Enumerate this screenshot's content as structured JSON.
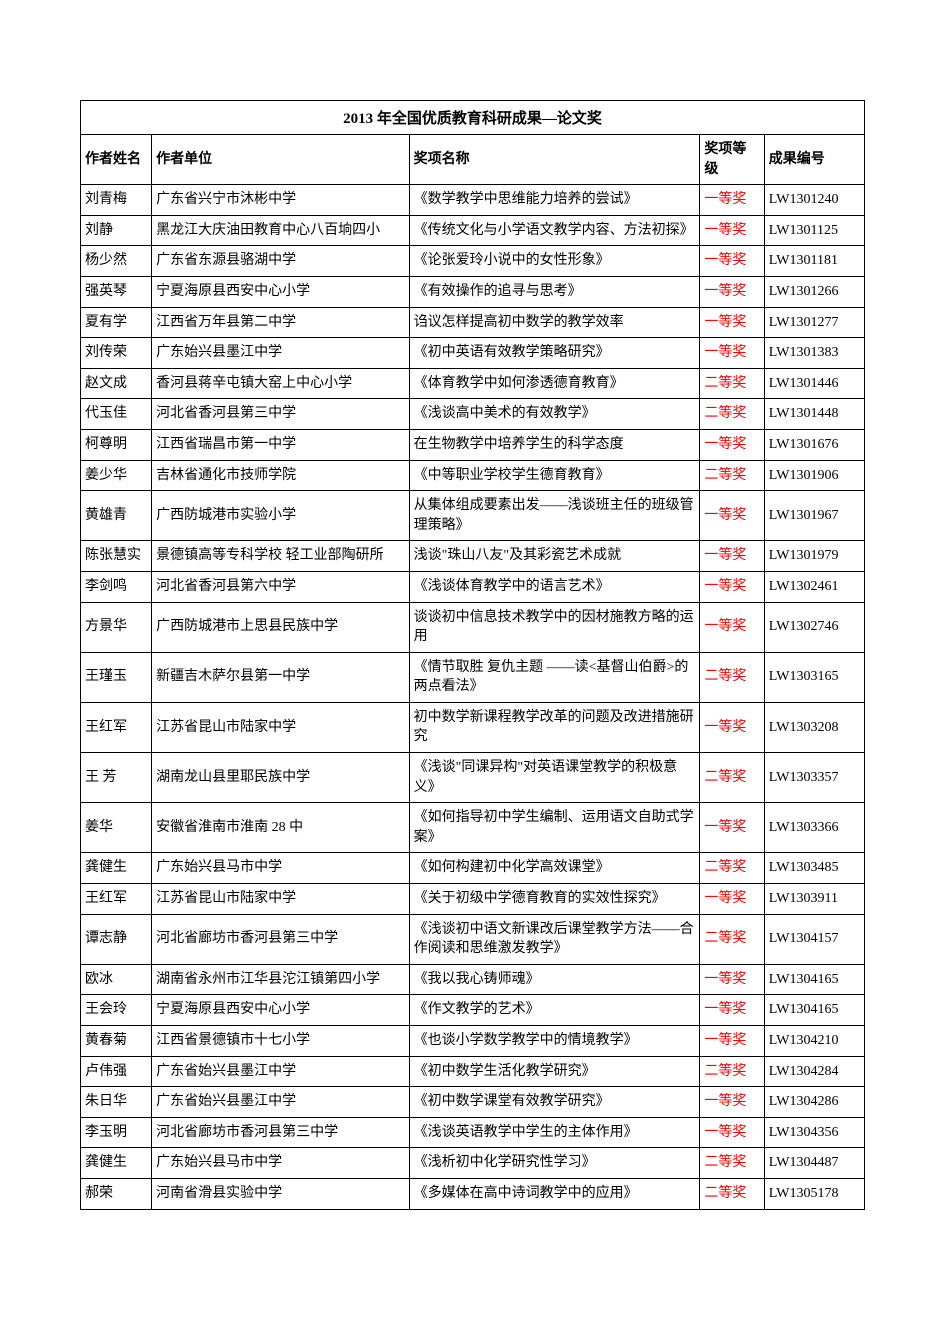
{
  "title": "2013 年全国优质教育科研成果—论文奖",
  "columns": [
    "作者姓名",
    "作者单位",
    "奖项名称",
    "奖项等级",
    "成果编号"
  ],
  "level_color": "#ff0000",
  "text_color": "#000000",
  "border_color": "#000000",
  "background_color": "#ffffff",
  "font_family": "SimSun",
  "title_fontsize": 15,
  "cell_fontsize": 14,
  "rows": [
    {
      "author": "刘青梅",
      "unit": "广东省兴宁市沐彬中学",
      "award": "《数学教学中思维能力培养的尝试》",
      "level": "一等奖",
      "code": "LW1301240"
    },
    {
      "author": "刘静",
      "unit": "黑龙江大庆油田教育中心八百垧四小",
      "award": "《传统文化与小学语文教学内容、方法初探》",
      "level": "一等奖",
      "code": "LW1301125"
    },
    {
      "author": "杨少然",
      "unit": "广东省东源县骆湖中学",
      "award": "《论张爱玲小说中的女性形象》",
      "level": "一等奖",
      "code": "LW1301181"
    },
    {
      "author": "强英琴",
      "unit": "宁夏海原县西安中心小学",
      "award": "《有效操作的追寻与思考》",
      "level": "一等奖",
      "code": "LW1301266"
    },
    {
      "author": "夏有学",
      "unit": "江西省万年县第二中学",
      "award": "诌议怎样提高初中数学的教学效率",
      "level": "一等奖",
      "code": "LW1301277"
    },
    {
      "author": "刘传荣",
      "unit": "广东始兴县墨江中学",
      "award": "《初中英语有效教学策略研究》",
      "level": "一等奖",
      "code": "LW1301383"
    },
    {
      "author": "赵文成",
      "unit": "香河县蒋辛屯镇大窑上中心小学",
      "award": "《体育教学中如何渗透德育教育》",
      "level": "二等奖",
      "code": "LW1301446"
    },
    {
      "author": "代玉佳",
      "unit": "河北省香河县第三中学",
      "award": "《浅谈高中美术的有效教学》",
      "level": "二等奖",
      "code": "LW1301448"
    },
    {
      "author": "柯尊明",
      "unit": "江西省瑞昌市第一中学",
      "award": "在生物教学中培养学生的科学态度",
      "level": "一等奖",
      "code": "LW1301676"
    },
    {
      "author": "姜少华",
      "unit": "吉林省通化市技师学院",
      "award": "《中等职业学校学生德育教育》",
      "level": "二等奖",
      "code": "LW1301906"
    },
    {
      "author": "黄雄青",
      "unit": "广西防城港市实验小学",
      "award": "从集体组成要素出发——浅谈班主任的班级管理策略》",
      "level": "一等奖",
      "code": "LW1301967"
    },
    {
      "author": "陈张慧实",
      "unit": "景德镇高等专科学校 轻工业部陶研所",
      "award": "浅谈\"珠山八友\"及其彩瓷艺术成就",
      "level": "一等奖",
      "code": "LW1301979"
    },
    {
      "author": "李剑鸣",
      "unit": "河北省香河县第六中学",
      "award": "《浅谈体育教学中的语言艺术》",
      "level": "一等奖",
      "code": "LW1302461"
    },
    {
      "author": "方景华",
      "unit": "广西防城港市上思县民族中学",
      "award": "谈谈初中信息技术教学中的因材施教方略的运用",
      "level": "一等奖",
      "code": "LW1302746"
    },
    {
      "author": "王瑾玉",
      "unit": "新疆吉木萨尔县第一中学",
      "award": "《情节取胜  复仇主题  ——读<基督山伯爵>的两点看法》",
      "level": "二等奖",
      "code": "LW1303165"
    },
    {
      "author": "王红军",
      "unit": "江苏省昆山市陆家中学",
      "award": "初中数学新课程教学改革的问题及改进措施研究",
      "level": "一等奖",
      "code": "LW1303208"
    },
    {
      "author": "王 芳",
      "unit": "湖南龙山县里耶民族中学",
      "award": "《浅谈\"同课异构\"对英语课堂教学的积极意义》",
      "level": "二等奖",
      "code": "LW1303357"
    },
    {
      "author": "姜华",
      "unit": "安徽省淮南市淮南 28 中",
      "award": "《如何指导初中学生编制、运用语文自助式学案》",
      "level": "一等奖",
      "code": "LW1303366"
    },
    {
      "author": "龚健生",
      "unit": "广东始兴县马市中学",
      "award": "《如何构建初中化学高效课堂》",
      "level": "二等奖",
      "code": "LW1303485"
    },
    {
      "author": "王红军",
      "unit": "江苏省昆山市陆家中学",
      "award": "《关于初级中学德育教育的实效性探究》",
      "level": "一等奖",
      "code": "LW1303911"
    },
    {
      "author": "谭志静",
      "unit": "河北省廊坊市香河县第三中学",
      "award": "《浅谈初中语文新课改后课堂教学方法——合作阅读和思维激发教学》",
      "level": "二等奖",
      "code": "LW1304157"
    },
    {
      "author": "欧冰",
      "unit": "湖南省永州市江华县沱江镇第四小学",
      "award": "《我以我心铸师魂》",
      "level": "一等奖",
      "code": "LW1304165"
    },
    {
      "author": "王会玲",
      "unit": "宁夏海原县西安中心小学",
      "award": "《作文教学的艺术》",
      "level": "一等奖",
      "code": "LW1304165"
    },
    {
      "author": "黄春菊",
      "unit": "江西省景德镇市十七小学",
      "award": "《也谈小学数学教学中的情境教学》",
      "level": "一等奖",
      "code": "LW1304210"
    },
    {
      "author": "卢伟强",
      "unit": "广东省始兴县墨江中学",
      "award": "《初中数学生活化教学研究》",
      "level": "二等奖",
      "code": "LW1304284"
    },
    {
      "author": "朱日华",
      "unit": "广东省始兴县墨江中学",
      "award": "《初中数学课堂有效教学研究》",
      "level": "一等奖",
      "code": "LW1304286"
    },
    {
      "author": "李玉明",
      "unit": "河北省廊坊市香河县第三中学",
      "award": "《浅谈英语教学中学生的主体作用》",
      "level": "一等奖",
      "code": "LW1304356"
    },
    {
      "author": "龚健生",
      "unit": "广东始兴县马市中学",
      "award": "《浅析初中化学研究性学习》",
      "level": "二等奖",
      "code": "LW1304487"
    },
    {
      "author": "郝荣",
      "unit": "河南省滑县实验中学",
      "award": "《多媒体在高中诗词教学中的应用》",
      "level": "二等奖",
      "code": "LW1305178"
    }
  ]
}
